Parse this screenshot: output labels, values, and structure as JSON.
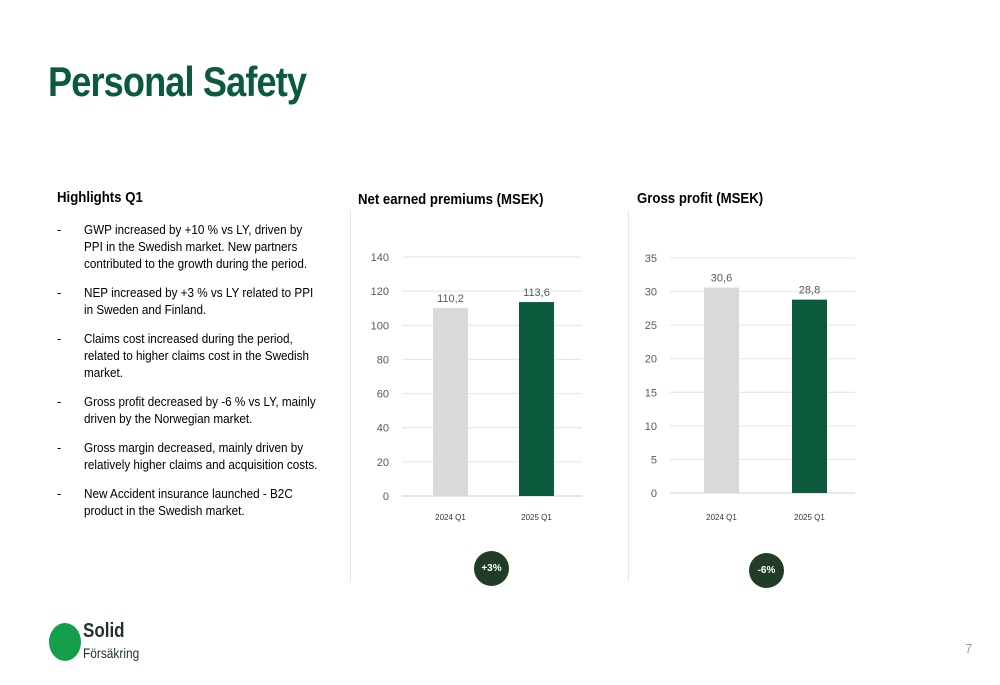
{
  "page": {
    "title": "Personal Safety",
    "page_number": "7"
  },
  "highlights": {
    "heading": "Highlights Q1",
    "bullet_marker": "-",
    "items": [
      "GWP increased by +10 % vs LY, driven by PPI in the Swedish market. New partners contributed to the growth during the period.",
      "NEP increased by +3 % vs LY related to PPI in Sweden and Finland.",
      "Claims cost increased during the period, related to higher claims cost in the Swedish market.",
      "Gross profit decreased by -6 % vs LY, mainly driven by the Norwegian market.",
      "Gross margin decreased, mainly driven by relatively higher claims and acquisition costs.",
      "New Accident insurance launched - B2C product in the Swedish market."
    ]
  },
  "colors": {
    "title_green": "#0b5a3c",
    "bar_previous": "#d9d9d9",
    "bar_current": "#0b5a3c",
    "badge": "#213d27",
    "logo_green": "#139e4a"
  },
  "chart_data": [
    {
      "type": "bar",
      "title": "Net earned premiums (MSEK)",
      "categories": [
        "2024 Q1",
        "2025 Q1"
      ],
      "values": [
        110.2,
        113.6
      ],
      "value_labels": [
        "110,2",
        "113,6"
      ],
      "ylim": [
        0,
        140
      ],
      "yticks": [
        0,
        20,
        40,
        60,
        80,
        100,
        120,
        140
      ],
      "grid": true,
      "change_badge": "+3%"
    },
    {
      "type": "bar",
      "title": "Gross profit (MSEK)",
      "categories": [
        "2024 Q1",
        "2025 Q1"
      ],
      "values": [
        30.6,
        28.8
      ],
      "value_labels": [
        "30,6",
        "28,8"
      ],
      "ylim": [
        0,
        35
      ],
      "yticks": [
        0,
        5,
        10,
        15,
        20,
        25,
        30,
        35
      ],
      "grid": true,
      "change_badge": "-6%"
    }
  ],
  "logo": {
    "name": "Solid",
    "subtitle": "Försäkring"
  }
}
